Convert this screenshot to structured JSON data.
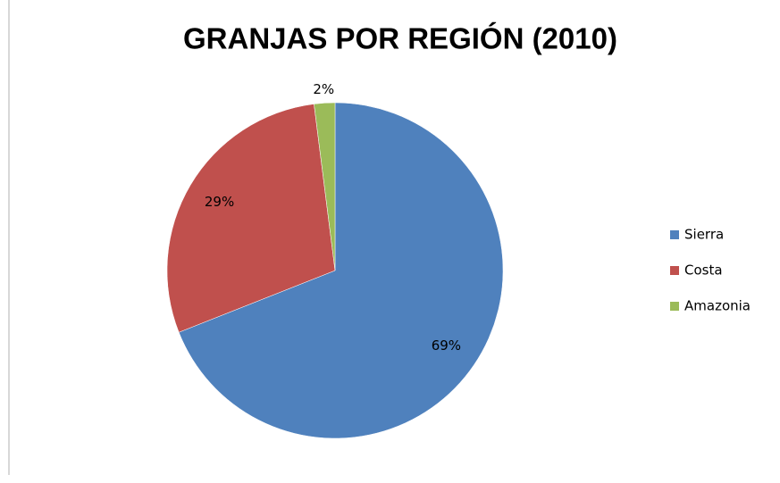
{
  "chart_data": {
    "type": "pie",
    "title": "GRANJAS POR REGIÓN (2010)",
    "categories": [
      "Sierra",
      "Costa",
      "Amazonia"
    ],
    "values": [
      69,
      29,
      2
    ],
    "value_labels": [
      "69%",
      "29%",
      "2%"
    ],
    "colors": [
      "#4f81bd",
      "#c0504d",
      "#9bbb59"
    ],
    "legend": "right"
  }
}
